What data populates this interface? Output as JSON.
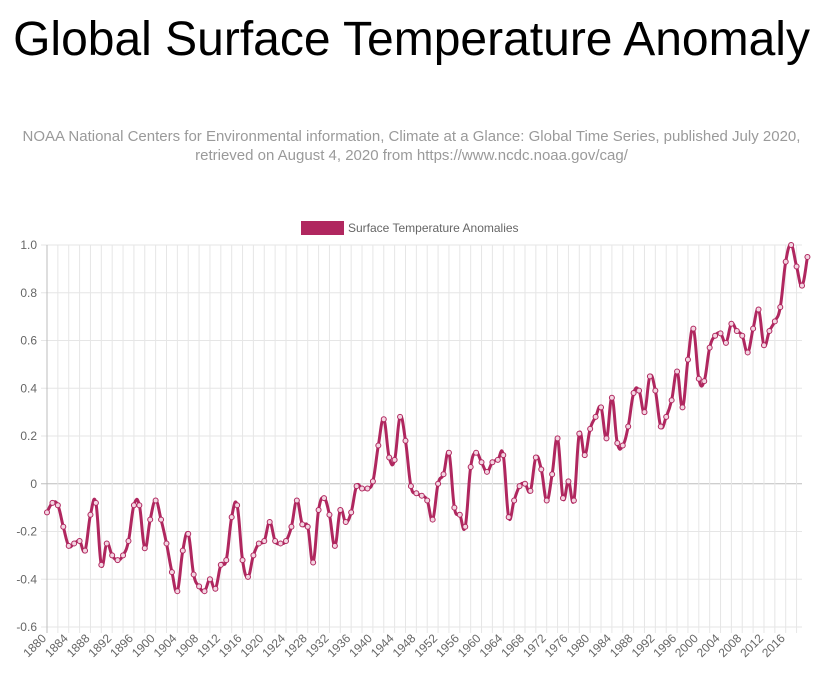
{
  "page": {
    "title": "Global Surface Temperature Anomaly",
    "subtitle": "NOAA National Centers for Environmental information, Climate at a Glance: Global Time Series, published July 2020, retrieved on August 4, 2020 from https://www.ncdc.noaa.gov/cag/"
  },
  "colors": {
    "series": "#b0275f",
    "grid": "#e6e6e6",
    "zero_line": "#bdbdbd",
    "tick_text": "#666666"
  },
  "chart_data": {
    "type": "line",
    "title": "Global Surface Temperature Anomaly",
    "xlabel": "",
    "ylabel": "",
    "ylim": [
      -0.6,
      1.0
    ],
    "yticks": [
      1.0,
      0.8,
      0.6,
      0.4,
      0.2,
      0,
      -0.2,
      -0.4,
      -0.6
    ],
    "ytick_labels": [
      "1.0",
      "0.8",
      "0.6",
      "0.4",
      "0.2",
      "0",
      "-0.2",
      "-0.4",
      "-0.6"
    ],
    "xlim": [
      1880,
      2019
    ],
    "xticks": [
      1880,
      1884,
      1888,
      1892,
      1896,
      1900,
      1904,
      1908,
      1912,
      1916,
      1920,
      1924,
      1928,
      1932,
      1936,
      1940,
      1944,
      1948,
      1952,
      1956,
      1960,
      1964,
      1968,
      1972,
      1976,
      1980,
      1984,
      1988,
      1992,
      1996,
      2000,
      2004,
      2008,
      2012,
      2016
    ],
    "grid": true,
    "legend_position": "top-center",
    "series": [
      {
        "name": "Surface Temperature Anomalies",
        "x_start": 1880,
        "values": [
          -0.12,
          -0.08,
          -0.09,
          -0.18,
          -0.26,
          -0.25,
          -0.24,
          -0.28,
          -0.13,
          -0.08,
          -0.34,
          -0.25,
          -0.3,
          -0.32,
          -0.3,
          -0.24,
          -0.09,
          -0.09,
          -0.27,
          -0.15,
          -0.07,
          -0.15,
          -0.25,
          -0.37,
          -0.45,
          -0.28,
          -0.21,
          -0.38,
          -0.43,
          -0.45,
          -0.4,
          -0.44,
          -0.34,
          -0.32,
          -0.14,
          -0.09,
          -0.32,
          -0.39,
          -0.3,
          -0.25,
          -0.24,
          -0.16,
          -0.24,
          -0.25,
          -0.24,
          -0.18,
          -0.07,
          -0.17,
          -0.18,
          -0.33,
          -0.11,
          -0.06,
          -0.13,
          -0.26,
          -0.11,
          -0.16,
          -0.12,
          -0.01,
          -0.02,
          -0.02,
          0.01,
          0.16,
          0.27,
          0.11,
          0.1,
          0.28,
          0.18,
          -0.01,
          -0.04,
          -0.05,
          -0.07,
          -0.15,
          0.0,
          0.04,
          0.13,
          -0.1,
          -0.13,
          -0.18,
          0.07,
          0.13,
          0.09,
          0.05,
          0.09,
          0.1,
          0.12,
          -0.14,
          -0.07,
          -0.01,
          0.0,
          -0.03,
          0.11,
          0.06,
          -0.07,
          0.04,
          0.19,
          -0.06,
          0.01,
          -0.07,
          0.21,
          0.12,
          0.23,
          0.28,
          0.32,
          0.19,
          0.36,
          0.17,
          0.16,
          0.24,
          0.38,
          0.39,
          0.3,
          0.45,
          0.39,
          0.24,
          0.28,
          0.35,
          0.47,
          0.32,
          0.52,
          0.65,
          0.44,
          0.43,
          0.57,
          0.62,
          0.63,
          0.59,
          0.67,
          0.64,
          0.62,
          0.55,
          0.65,
          0.73,
          0.58,
          0.64,
          0.68,
          0.74,
          0.93,
          1.0,
          0.91,
          0.83,
          0.95
        ]
      }
    ]
  }
}
